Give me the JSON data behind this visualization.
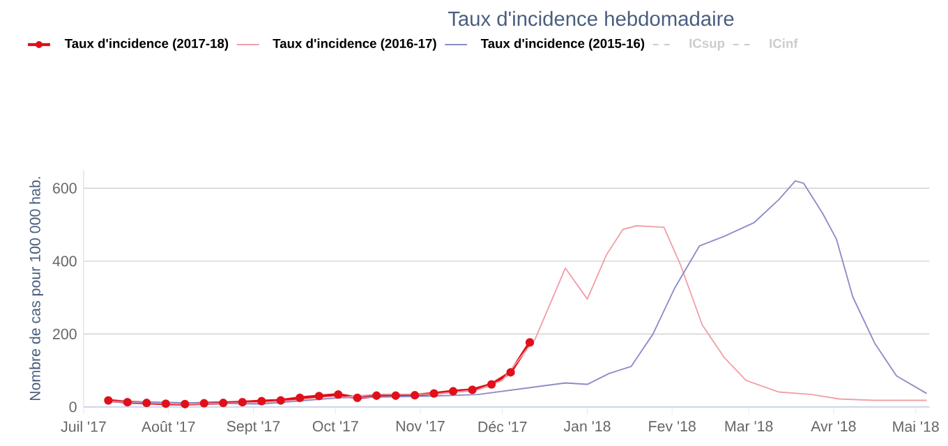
{
  "chart_data": {
    "type": "line",
    "title": "Taux d'incidence hebdomadaire",
    "ylabel": "Nombre de cas pour 100 000 hab.",
    "xlim": [
      "2017-07-01",
      "2018-05-06"
    ],
    "ylim": [
      0,
      650
    ],
    "yticks": [
      0,
      200,
      400,
      600
    ],
    "xticks": [
      {
        "value": "2017-07-01",
        "label": "Juil '17"
      },
      {
        "value": "2017-08-01",
        "label": "Août '17"
      },
      {
        "value": "2017-09-01",
        "label": "Sept '17"
      },
      {
        "value": "2017-10-01",
        "label": "Oct '17"
      },
      {
        "value": "2017-11-01",
        "label": "Nov '17"
      },
      {
        "value": "2017-12-01",
        "label": "Déc '17"
      },
      {
        "value": "2018-01-01",
        "label": "Jan '18"
      },
      {
        "value": "2018-02-01",
        "label": "Fev '18"
      },
      {
        "value": "2018-03-01",
        "label": "Mar '18"
      },
      {
        "value": "2018-04-01",
        "label": "Avr '18"
      },
      {
        "value": "2018-05-01",
        "label": "Mai '18"
      }
    ],
    "grid": "y",
    "legend": "top",
    "marker": "none",
    "line_style": "solid",
    "series": [
      {
        "name": "Taux d'incidence (2017-18)",
        "color": "#e0101a",
        "marker": "circle",
        "x": [
          "2017-07-10",
          "2017-07-17",
          "2017-07-24",
          "2017-07-31",
          "2017-08-07",
          "2017-08-14",
          "2017-08-21",
          "2017-08-28",
          "2017-09-04",
          "2017-09-11",
          "2017-09-18",
          "2017-09-25",
          "2017-10-02",
          "2017-10-09",
          "2017-10-16",
          "2017-10-23",
          "2017-10-30",
          "2017-11-06",
          "2017-11-13",
          "2017-11-20",
          "2017-11-27",
          "2017-12-04",
          "2017-12-11"
        ],
        "values": [
          18,
          13,
          11,
          9,
          8,
          10,
          11,
          13,
          16,
          18,
          25,
          30,
          34,
          25,
          31,
          31,
          32,
          37,
          43,
          47,
          62,
          95,
          177
        ]
      },
      {
        "name": "Taux d'incidence (2016-17)",
        "color": "#f0a0a8",
        "x": [
          "2017-07-10",
          "2017-08-07",
          "2017-09-04",
          "2017-10-02",
          "2017-10-16",
          "2017-11-06",
          "2017-11-22",
          "2017-12-01",
          "2017-12-13",
          "2017-12-24",
          "2018-01-01",
          "2018-01-08",
          "2018-01-14",
          "2018-01-19",
          "2018-01-29",
          "2018-02-04",
          "2018-02-12",
          "2018-02-20",
          "2018-02-28",
          "2018-03-12",
          "2018-03-24",
          "2018-04-03",
          "2018-04-16",
          "2018-05-05"
        ],
        "values": [
          15,
          8,
          12,
          25,
          35,
          35,
          47,
          73,
          187,
          381,
          296,
          417,
          487,
          497,
          493,
          391,
          225,
          136,
          73,
          41,
          34,
          22,
          18,
          18
        ]
      },
      {
        "name": "Taux d'incidence (2015-16)",
        "color": "#8c8cc8",
        "x": [
          "2017-07-10",
          "2017-09-04",
          "2017-10-02",
          "2017-11-06",
          "2017-11-22",
          "2017-12-24",
          "2018-01-01",
          "2018-01-09",
          "2018-01-17",
          "2018-01-25",
          "2018-02-02",
          "2018-02-11",
          "2018-02-20",
          "2018-03-03",
          "2018-03-12",
          "2018-03-18",
          "2018-03-21",
          "2018-03-28",
          "2018-04-02",
          "2018-04-08",
          "2018-04-16",
          "2018-04-24",
          "2018-05-05"
        ],
        "values": [
          15,
          8,
          25,
          30,
          34,
          66,
          62,
          92,
          111,
          200,
          327,
          442,
          468,
          506,
          569,
          620,
          614,
          531,
          461,
          302,
          175,
          85,
          37
        ]
      },
      {
        "name": "ICsup",
        "color": "#cccccc",
        "line_style": "dashed"
      },
      {
        "name": "ICinf",
        "color": "#cccccc",
        "line_style": "dashed"
      }
    ]
  }
}
